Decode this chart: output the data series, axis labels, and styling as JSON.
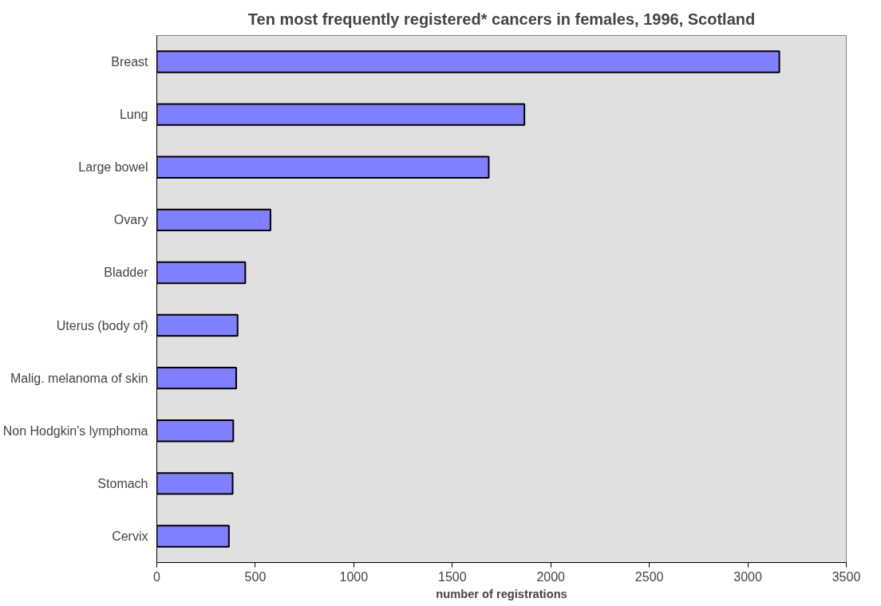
{
  "chart_data": {
    "type": "bar",
    "orientation": "horizontal",
    "title": "Ten most frequently registered* cancers in females, 1996, Scotland",
    "xlabel": "number of registrations",
    "categories": [
      "Breast",
      "Lung",
      "Large bowel",
      "Ovary",
      "Bladder",
      "Uterus (body of)",
      "Malig. melanoma of skin",
      "Non Hodgkin's lymphoma",
      "Stomach",
      "Cervix"
    ],
    "values": [
      3160,
      1866,
      1685,
      577,
      449,
      410,
      403,
      388,
      385,
      366
    ],
    "color": "#8080ff",
    "xlim": [
      0,
      3500
    ],
    "xticks": [
      0,
      500,
      1000,
      1500,
      2000,
      2500,
      3000,
      3500
    ],
    "grid": false
  }
}
